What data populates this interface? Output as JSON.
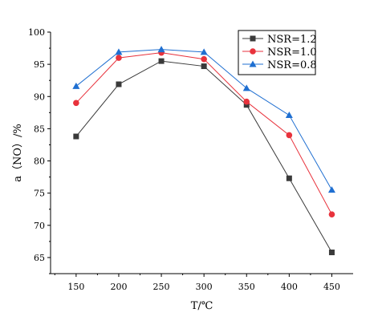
{
  "chart_data": {
    "type": "line",
    "xlabel": "T/℃",
    "ylabel": "a（NO）/%",
    "x": [
      150,
      200,
      250,
      300,
      350,
      400,
      450
    ],
    "x_ticks": [
      150,
      200,
      250,
      300,
      350,
      400,
      450
    ],
    "xlim": [
      120,
      475
    ],
    "ylim": [
      62.5,
      100
    ],
    "y_ticks": [
      65,
      70,
      75,
      80,
      85,
      90,
      95,
      100
    ],
    "grid": false,
    "legend_position": "top-right",
    "series": [
      {
        "name": "NSR=1.2",
        "color": "#3a3a3a",
        "marker": "square",
        "values": [
          83.8,
          91.9,
          95.5,
          94.7,
          88.7,
          77.3,
          65.8
        ]
      },
      {
        "name": "NSR=1.0",
        "color": "#e8323c",
        "marker": "circle",
        "values": [
          89.0,
          96.0,
          96.8,
          95.8,
          89.2,
          84.0,
          71.7
        ]
      },
      {
        "name": "NSR=0.8",
        "color": "#1f6fd1",
        "marker": "triangle",
        "values": [
          91.6,
          96.9,
          97.3,
          96.9,
          91.3,
          87.1,
          75.5
        ]
      }
    ]
  }
}
